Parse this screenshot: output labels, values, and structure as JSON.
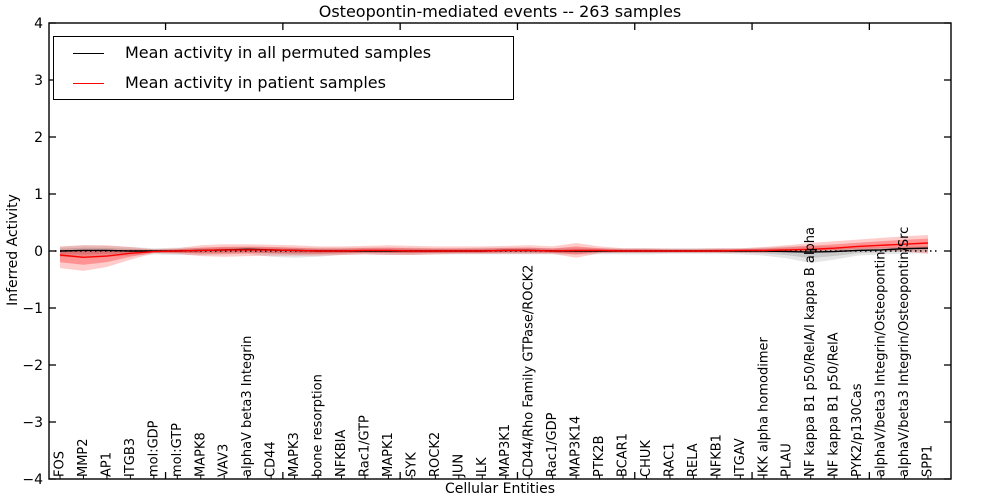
{
  "title": "Osteopontin-mediated events -- 263 samples",
  "axes": {
    "xlabel": "Cellular Entities",
    "ylabel": "Inferred Activity",
    "ylim": [
      -4,
      4
    ],
    "yticks": [
      4,
      3,
      2,
      1,
      0,
      -1,
      -2,
      -3,
      -4
    ]
  },
  "legend": {
    "position": "upper left",
    "entries": [
      {
        "label": "Mean activity in all permuted samples",
        "color": "#000000"
      },
      {
        "label": "Mean activity in patient samples",
        "color": "#ff0000"
      }
    ]
  },
  "chart_data": {
    "type": "line",
    "title": "Osteopontin-mediated events -- 263 samples",
    "xlabel": "Cellular Entities",
    "ylabel": "Inferred Activity",
    "ylim": [
      -4,
      4
    ],
    "grid": false,
    "legend_position": "upper left",
    "zero_reference_line": "dotted black",
    "categories": [
      "FOS",
      "MMP2",
      "AP1",
      "ITGB3",
      "mol:GDP",
      "mol:GTP",
      "MAPK8",
      "VAV3",
      "alphaV beta3 Integrin",
      "CD44",
      "MAPK3",
      "bone resorption",
      "NFKBIA",
      "Rac1/GTP",
      "MAPK1",
      "SYK",
      "ROCK2",
      "JUN",
      "ILK",
      "MAP3K1",
      "CD44/Rho Family GTPase/ROCK2",
      "Rac1/GDP",
      "MAP3K14",
      "PTK2B",
      "BCAR1",
      "CHUK",
      "RAC1",
      "RELA",
      "NFKB1",
      "ITGAV",
      "IKK alpha homodimer",
      "PLAU",
      "NF kappa B1 p50/RelA/I kappa B alpha",
      "NF kappa B1 p50/RelA",
      "PYK2/p130Cas",
      "alphaV/beta3 Integrin/Osteopontin",
      "alphaV/beta3 Integrin/Osteopontin/Src",
      "SPP1"
    ],
    "series": [
      {
        "name": "Mean activity in all permuted samples",
        "color": "#000000",
        "band_color_outer": "rgba(0,0,0,0.10)",
        "band_color_inner": "rgba(0,0,0,0.12)",
        "values": [
          0.0,
          0.01,
          0.01,
          0.0,
          0.0,
          0.0,
          0.01,
          0.02,
          0.03,
          0.02,
          0.01,
          0.0,
          0.0,
          0.0,
          0.0,
          0.0,
          0.0,
          0.0,
          0.0,
          0.01,
          0.01,
          0.0,
          0.0,
          0.0,
          0.0,
          0.0,
          0.0,
          0.0,
          0.0,
          0.0,
          0.0,
          -0.01,
          -0.02,
          -0.01,
          0.01,
          0.02,
          0.04,
          0.05
        ],
        "band_low": [
          -0.1,
          -0.12,
          -0.1,
          -0.08,
          -0.06,
          -0.07,
          -0.07,
          -0.06,
          -0.05,
          -0.1,
          -0.12,
          -0.1,
          -0.07,
          -0.06,
          -0.07,
          -0.07,
          -0.06,
          -0.06,
          -0.06,
          -0.06,
          -0.06,
          -0.06,
          -0.06,
          -0.06,
          -0.06,
          -0.06,
          -0.05,
          -0.05,
          -0.05,
          -0.06,
          -0.08,
          -0.13,
          -0.21,
          -0.15,
          -0.08,
          -0.06,
          -0.05,
          -0.04
        ],
        "band_high": [
          0.07,
          0.1,
          0.09,
          0.07,
          0.05,
          0.06,
          0.06,
          0.07,
          0.08,
          0.07,
          0.06,
          0.06,
          0.06,
          0.06,
          0.06,
          0.06,
          0.05,
          0.05,
          0.06,
          0.06,
          0.06,
          0.05,
          0.06,
          0.05,
          0.05,
          0.05,
          0.05,
          0.05,
          0.05,
          0.05,
          0.06,
          0.08,
          0.09,
          0.08,
          0.07,
          0.07,
          0.08,
          0.09
        ]
      },
      {
        "name": "Mean activity in patient samples",
        "color": "#ff0000",
        "band_color_outer": "rgba(255,0,0,0.20)",
        "band_color_inner": "rgba(255,0,0,0.28)",
        "values": [
          -0.07,
          -0.11,
          -0.09,
          -0.04,
          -0.01,
          0.0,
          0.01,
          0.02,
          0.02,
          0.02,
          0.01,
          0.0,
          0.0,
          0.01,
          0.01,
          0.0,
          0.0,
          0.0,
          0.0,
          0.01,
          0.01,
          0.0,
          0.01,
          0.01,
          0.0,
          0.0,
          0.0,
          0.0,
          0.0,
          0.01,
          0.01,
          0.02,
          0.03,
          0.05,
          0.08,
          0.1,
          0.12,
          0.14
        ],
        "band_low": [
          -0.3,
          -0.35,
          -0.28,
          -0.15,
          -0.04,
          -0.05,
          -0.09,
          -0.1,
          -0.09,
          -0.08,
          -0.08,
          -0.08,
          -0.07,
          -0.06,
          -0.07,
          -0.07,
          -0.06,
          -0.05,
          -0.05,
          -0.05,
          -0.05,
          -0.05,
          -0.12,
          -0.04,
          -0.03,
          -0.03,
          -0.03,
          -0.03,
          -0.03,
          -0.03,
          -0.03,
          -0.02,
          -0.01,
          0.0,
          0.01,
          0.01,
          -0.01,
          -0.05
        ],
        "band_high": [
          0.08,
          0.1,
          0.1,
          0.07,
          0.03,
          0.05,
          0.1,
          0.12,
          0.12,
          0.11,
          0.1,
          0.08,
          0.08,
          0.09,
          0.1,
          0.09,
          0.08,
          0.08,
          0.08,
          0.09,
          0.1,
          0.08,
          0.14,
          0.08,
          0.05,
          0.05,
          0.04,
          0.04,
          0.05,
          0.05,
          0.07,
          0.1,
          0.14,
          0.17,
          0.2,
          0.23,
          0.26,
          0.28
        ]
      }
    ]
  }
}
